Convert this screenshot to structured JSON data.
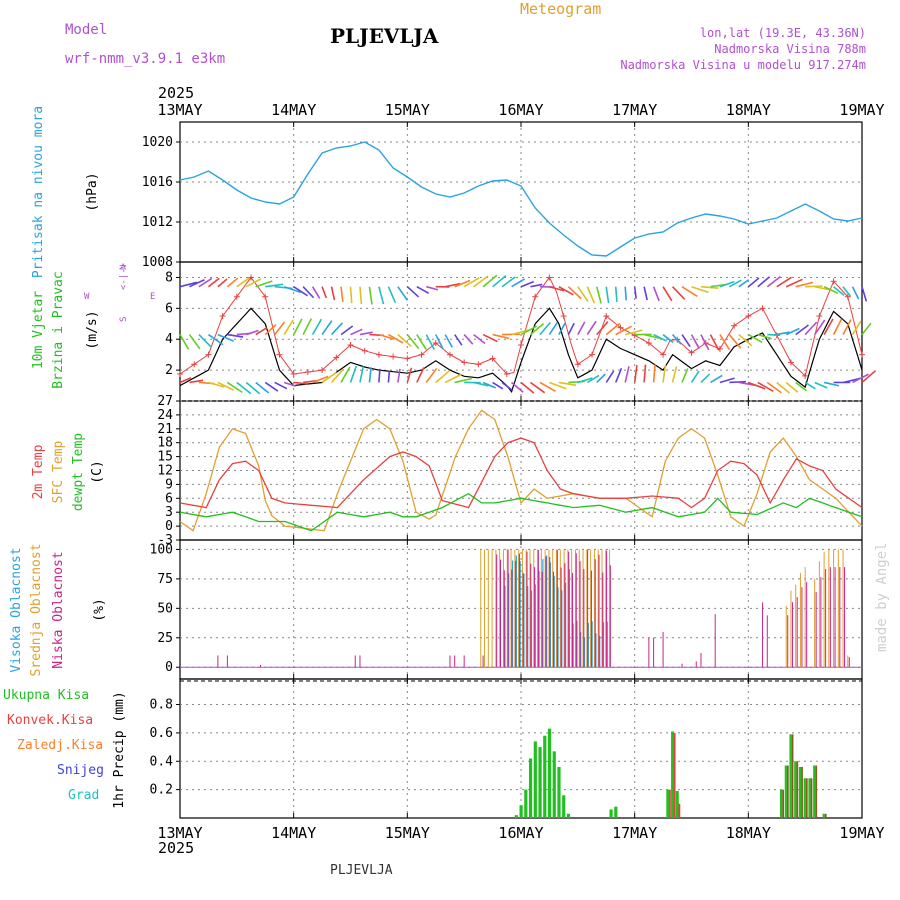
{
  "header": {
    "model_label": "Model",
    "model_name": "wrf-nmm_v3.9.1 e3km",
    "station": "PLJEVLJA",
    "title": "Meteogram",
    "lonlat": "lon,lat (19.3E, 43.36N)",
    "altitude": "Nadmorska Visina 788m",
    "model_altitude": "Nadmorska Visina u modelu 917.274m",
    "year_top": "2025",
    "year_bottom": "2025",
    "footer_station": "PLJEVLJA",
    "watermark": "made by Angel"
  },
  "days": [
    "13MAY",
    "14MAY",
    "15MAY",
    "16MAY",
    "17MAY",
    "18MAY",
    "19MAY"
  ],
  "colors": {
    "pressure": "#29a3e0",
    "wind_speed": "#000000",
    "gust": "#e84040",
    "t2m": "#e84040",
    "tsfc": "#e0a030",
    "dewpt": "#20c020",
    "cloud_high": "#29a3e0",
    "cloud_mid": "#e0a030",
    "cloud_low": "#cc2288",
    "precip_total": "#20c020",
    "precip_conv": "#e84040",
    "precip_freez": "#ff7f27",
    "snow": "#4040e0",
    "grad": "#20c0c0",
    "meta": "#b050d0",
    "title": "#e0a030"
  },
  "chart_data": [
    {
      "type": "line",
      "panel": "pressure",
      "label_lines": [
        "Pritisak na nivou mora"
      ],
      "unit": "(hPa)",
      "x_hours": [
        0,
        3,
        6,
        9,
        12,
        15,
        18,
        21,
        24,
        27,
        30,
        33,
        36,
        39,
        42,
        45,
        48,
        51,
        54,
        57,
        60,
        63,
        66,
        69,
        72,
        75,
        78,
        81,
        84,
        87,
        90,
        93,
        96,
        99,
        102,
        105,
        108,
        111,
        114,
        117,
        120,
        123,
        126,
        129,
        132,
        135,
        138,
        141,
        144
      ],
      "values": [
        1016.2,
        1016.5,
        1017.1,
        1016.2,
        1015.2,
        1014.4,
        1014.0,
        1013.8,
        1014.5,
        1016.8,
        1018.9,
        1019.4,
        1019.6,
        1020.0,
        1019.2,
        1017.4,
        1016.5,
        1015.5,
        1014.8,
        1014.5,
        1014.9,
        1015.6,
        1016.1,
        1016.2,
        1015.6,
        1013.4,
        1011.9,
        1010.7,
        1009.6,
        1008.7,
        1008.6,
        1009.5,
        1010.4,
        1010.8,
        1011.0,
        1011.9,
        1012.4,
        1012.8,
        1012.6,
        1012.3,
        1011.8,
        1012.1,
        1012.4,
        1013.1,
        1013.8,
        1013.1,
        1012.3,
        1012.1,
        1012.4
      ]
    }
  ]
}
